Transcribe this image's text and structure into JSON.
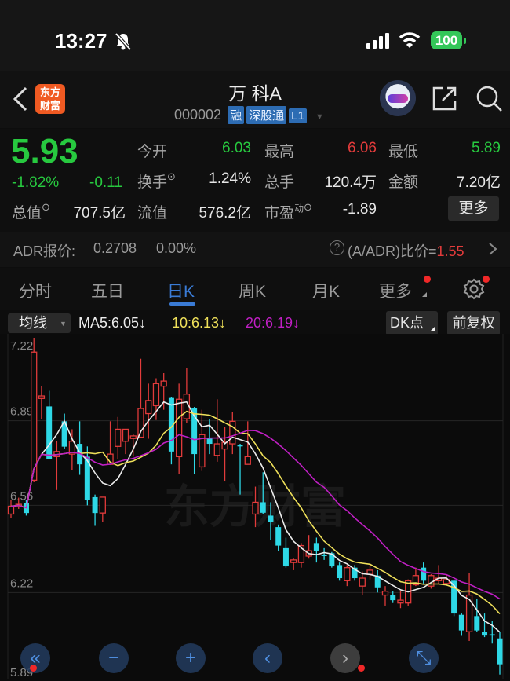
{
  "status_bar": {
    "time": "13:27",
    "battery": "100",
    "icons": [
      "bell-slash-icon",
      "signal-icon",
      "wifi-icon",
      "battery-icon"
    ]
  },
  "header": {
    "logo_line1": "东方",
    "logo_line2": "财富",
    "title": "万 科A",
    "code": "000002",
    "tags": [
      "融",
      "深股通",
      "L1"
    ]
  },
  "quote": {
    "price": "5.93",
    "change_pct": "-1.82%",
    "change": "-0.11",
    "open_label": "今开",
    "open": "6.03",
    "high_label": "最高",
    "high": "6.06",
    "low_label": "最低",
    "low": "5.89",
    "turnover_label": "换手",
    "turnover": "1.24%",
    "volume_label": "总手",
    "volume": "120.4万",
    "amount_label": "金额",
    "amount": "7.20亿",
    "mcap_label": "总值",
    "mcap": "707.5亿",
    "float_label": "流值",
    "float": "576.2亿",
    "pe_label": "市盈",
    "pe_sup": "动",
    "pe": "-1.89",
    "more_button": "更多"
  },
  "adr": {
    "label": "ADR报价:",
    "price": "0.2708",
    "pct": "0.00%",
    "ratio_label": "(A/ADR)比价=",
    "ratio": "1.55"
  },
  "tabs": [
    {
      "label": "分时"
    },
    {
      "label": "五日"
    },
    {
      "label": "日K",
      "active": true
    },
    {
      "label": "周K"
    },
    {
      "label": "月K"
    },
    {
      "label": "更多"
    }
  ],
  "ma_bar": {
    "selector": "均线",
    "ma5": "MA5:6.05↓",
    "ma10": "10:6.13↓",
    "ma20": "20:6.19↓",
    "dk_button": "DK点",
    "adjust_button": "前复权"
  },
  "colors": {
    "up": "#e23b3b",
    "down": "#2ed8e6",
    "ma5": "#ececec",
    "ma10": "#efe05a",
    "ma20": "#c01fc4",
    "accent": "#3a7bd5"
  },
  "chart_data": {
    "type": "candlestick",
    "y_ticks": [
      "7.22",
      "6.89",
      "6.56",
      "6.22",
      "5.89"
    ],
    "ylim": [
      5.89,
      7.22
    ],
    "watermark": "东方财富",
    "ohlc": [
      [
        6.526,
        6.582,
        6.51,
        6.556
      ],
      [
        6.554,
        6.59,
        6.546,
        6.564
      ],
      [
        6.57,
        6.58,
        6.52,
        6.53
      ],
      [
        6.658,
        7.214,
        6.65,
        7.158
      ],
      [
        6.977,
        7.025,
        6.898,
        6.987
      ],
      [
        6.946,
        7.007,
        6.74,
        6.74
      ],
      [
        6.75,
        6.81,
        6.62,
        6.77
      ],
      [
        6.888,
        6.918,
        6.78,
        6.789
      ],
      [
        6.76,
        6.857,
        6.699,
        6.81
      ],
      [
        6.8,
        6.888,
        6.679,
        6.72
      ],
      [
        6.75,
        6.79,
        6.56,
        6.582
      ],
      [
        6.592,
        6.602,
        6.48,
        6.53
      ],
      [
        6.53,
        6.592,
        6.495,
        6.592
      ],
      [
        6.72,
        6.888,
        6.72,
        6.76
      ],
      [
        6.79,
        6.905,
        6.74,
        6.857
      ],
      [
        6.81,
        6.857,
        6.76,
        6.857
      ],
      [
        6.821,
        6.84,
        6.75,
        6.831
      ],
      [
        6.826,
        7.132,
        6.826,
        6.938
      ],
      [
        6.918,
        7.035,
        6.82,
        6.969
      ],
      [
        6.949,
        7.056,
        6.893,
        7.035
      ],
      [
        7.025,
        7.076,
        6.933,
        7.045
      ],
      [
        6.979,
        6.984,
        6.72,
        6.77
      ],
      [
        6.75,
        7.035,
        6.683,
        6.974
      ],
      [
        6.898,
        7.096,
        6.882,
        6.994
      ],
      [
        6.938,
        6.944,
        6.683,
        6.76
      ],
      [
        6.71,
        6.933,
        6.694,
        6.836
      ],
      [
        6.821,
        6.898,
        6.76,
        6.8
      ],
      [
        6.755,
        6.974,
        6.73,
        6.8
      ],
      [
        6.78,
        6.867,
        6.653,
        6.806
      ],
      [
        6.8,
        6.923,
        6.76,
        6.888
      ],
      [
        6.796,
        6.8,
        6.602,
        6.79
      ],
      [
        6.72,
        6.888,
        6.72,
        6.75
      ],
      [
        6.526,
        6.633,
        6.475,
        6.572
      ],
      [
        6.572,
        6.689,
        6.526,
        6.531
      ],
      [
        6.52,
        6.572,
        6.424,
        6.495
      ],
      [
        6.475,
        6.485,
        6.383,
        6.403
      ],
      [
        6.393,
        6.434,
        6.317,
        6.322
      ],
      [
        6.337,
        6.352,
        6.307,
        6.347
      ],
      [
        6.337,
        6.413,
        6.317,
        6.403
      ],
      [
        6.362,
        6.444,
        6.352,
        6.383
      ],
      [
        6.413,
        6.434,
        6.337,
        6.383
      ],
      [
        6.368,
        6.393,
        6.347,
        6.362
      ],
      [
        6.373,
        6.378,
        6.317,
        6.322
      ],
      [
        6.327,
        6.337,
        6.266,
        6.276
      ],
      [
        6.266,
        6.327,
        6.245,
        6.317
      ],
      [
        6.317,
        6.327,
        6.266,
        6.276
      ],
      [
        6.245,
        6.302,
        6.21,
        6.276
      ],
      [
        6.291,
        6.332,
        6.271,
        6.307
      ],
      [
        6.286,
        6.307,
        6.22,
        6.24
      ],
      [
        6.21,
        6.245,
        6.169,
        6.225
      ],
      [
        6.21,
        6.225,
        6.179,
        6.19
      ],
      [
        6.179,
        6.225,
        6.159,
        6.19
      ],
      [
        6.179,
        6.271,
        6.169,
        6.266
      ],
      [
        6.25,
        6.317,
        6.245,
        6.286
      ],
      [
        6.317,
        6.337,
        6.255,
        6.266
      ],
      [
        6.245,
        6.291,
        6.235,
        6.286
      ],
      [
        6.266,
        6.327,
        6.255,
        6.276
      ],
      [
        6.255,
        6.291,
        6.25,
        6.27
      ],
      [
        6.266,
        6.271,
        6.128,
        6.138
      ],
      [
        6.133,
        6.138,
        6.051,
        6.072
      ],
      [
        6.067,
        6.296,
        6.031,
        6.21
      ],
      [
        6.128,
        6.194,
        6.067,
        6.072
      ],
      [
        6.067,
        6.138,
        6.046,
        6.052
      ],
      [
        6.057,
        6.108,
        6.021,
        6.052
      ],
      [
        6.041,
        6.067,
        5.9,
        5.94
      ]
    ],
    "ma_periods": [
      5,
      10,
      20
    ]
  },
  "chart_controls": [
    {
      "name": "scroll-start-button",
      "icon": "double-chevron-left-icon",
      "glyph": "«"
    },
    {
      "name": "zoom-out-button",
      "icon": "minus-icon",
      "glyph": "−"
    },
    {
      "name": "zoom-in-button",
      "icon": "plus-icon",
      "glyph": "+"
    },
    {
      "name": "scroll-left-button",
      "icon": "chevron-left-icon",
      "glyph": "‹"
    },
    {
      "name": "scroll-right-button",
      "icon": "chevron-right-icon",
      "glyph": "›"
    },
    {
      "name": "fullscreen-button",
      "icon": "expand-icon",
      "glyph": "⤡"
    }
  ]
}
